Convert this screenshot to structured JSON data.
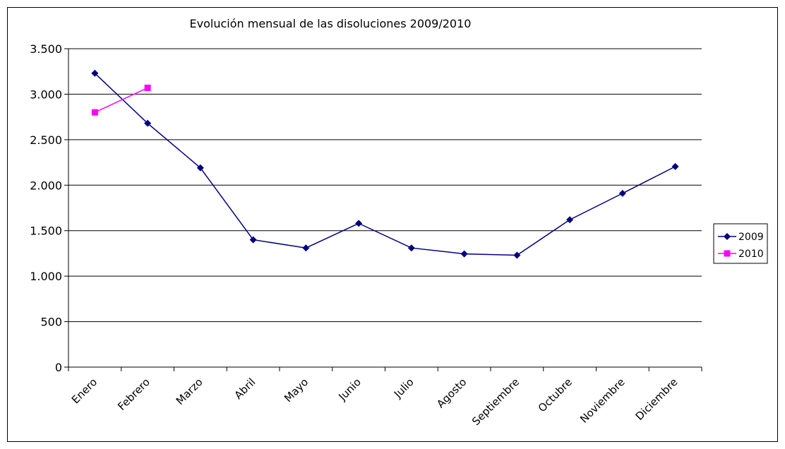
{
  "chart_data": {
    "type": "line",
    "title": "Evolución mensual de las disoluciones 2009/2010",
    "xlabel": "",
    "ylabel": "",
    "categories": [
      "Enero",
      "Febrero",
      "Marzo",
      "Abril",
      "Mayo",
      "Junio",
      "Julio",
      "Agosto",
      "Septiembre",
      "Octubre",
      "Noviembre",
      "Diciembre"
    ],
    "ylim": [
      0,
      3500
    ],
    "yticks": [
      0,
      500,
      1000,
      1500,
      2000,
      2500,
      3000,
      3500
    ],
    "ytick_labels": [
      "0",
      "500",
      "1.000",
      "1.500",
      "2.000",
      "2.500",
      "3.000",
      "3.500"
    ],
    "grid": true,
    "legend_position": "right",
    "series": [
      {
        "name": "2009",
        "color": "#000080",
        "marker": "diamond",
        "values": [
          3230,
          2680,
          2190,
          1400,
          1310,
          1580,
          1310,
          1245,
          1230,
          1620,
          1910,
          2205
        ]
      },
      {
        "name": "2010",
        "color": "#ff00ff",
        "marker": "square",
        "values": [
          2800,
          3070,
          null,
          null,
          null,
          null,
          null,
          null,
          null,
          null,
          null,
          null
        ]
      }
    ]
  }
}
